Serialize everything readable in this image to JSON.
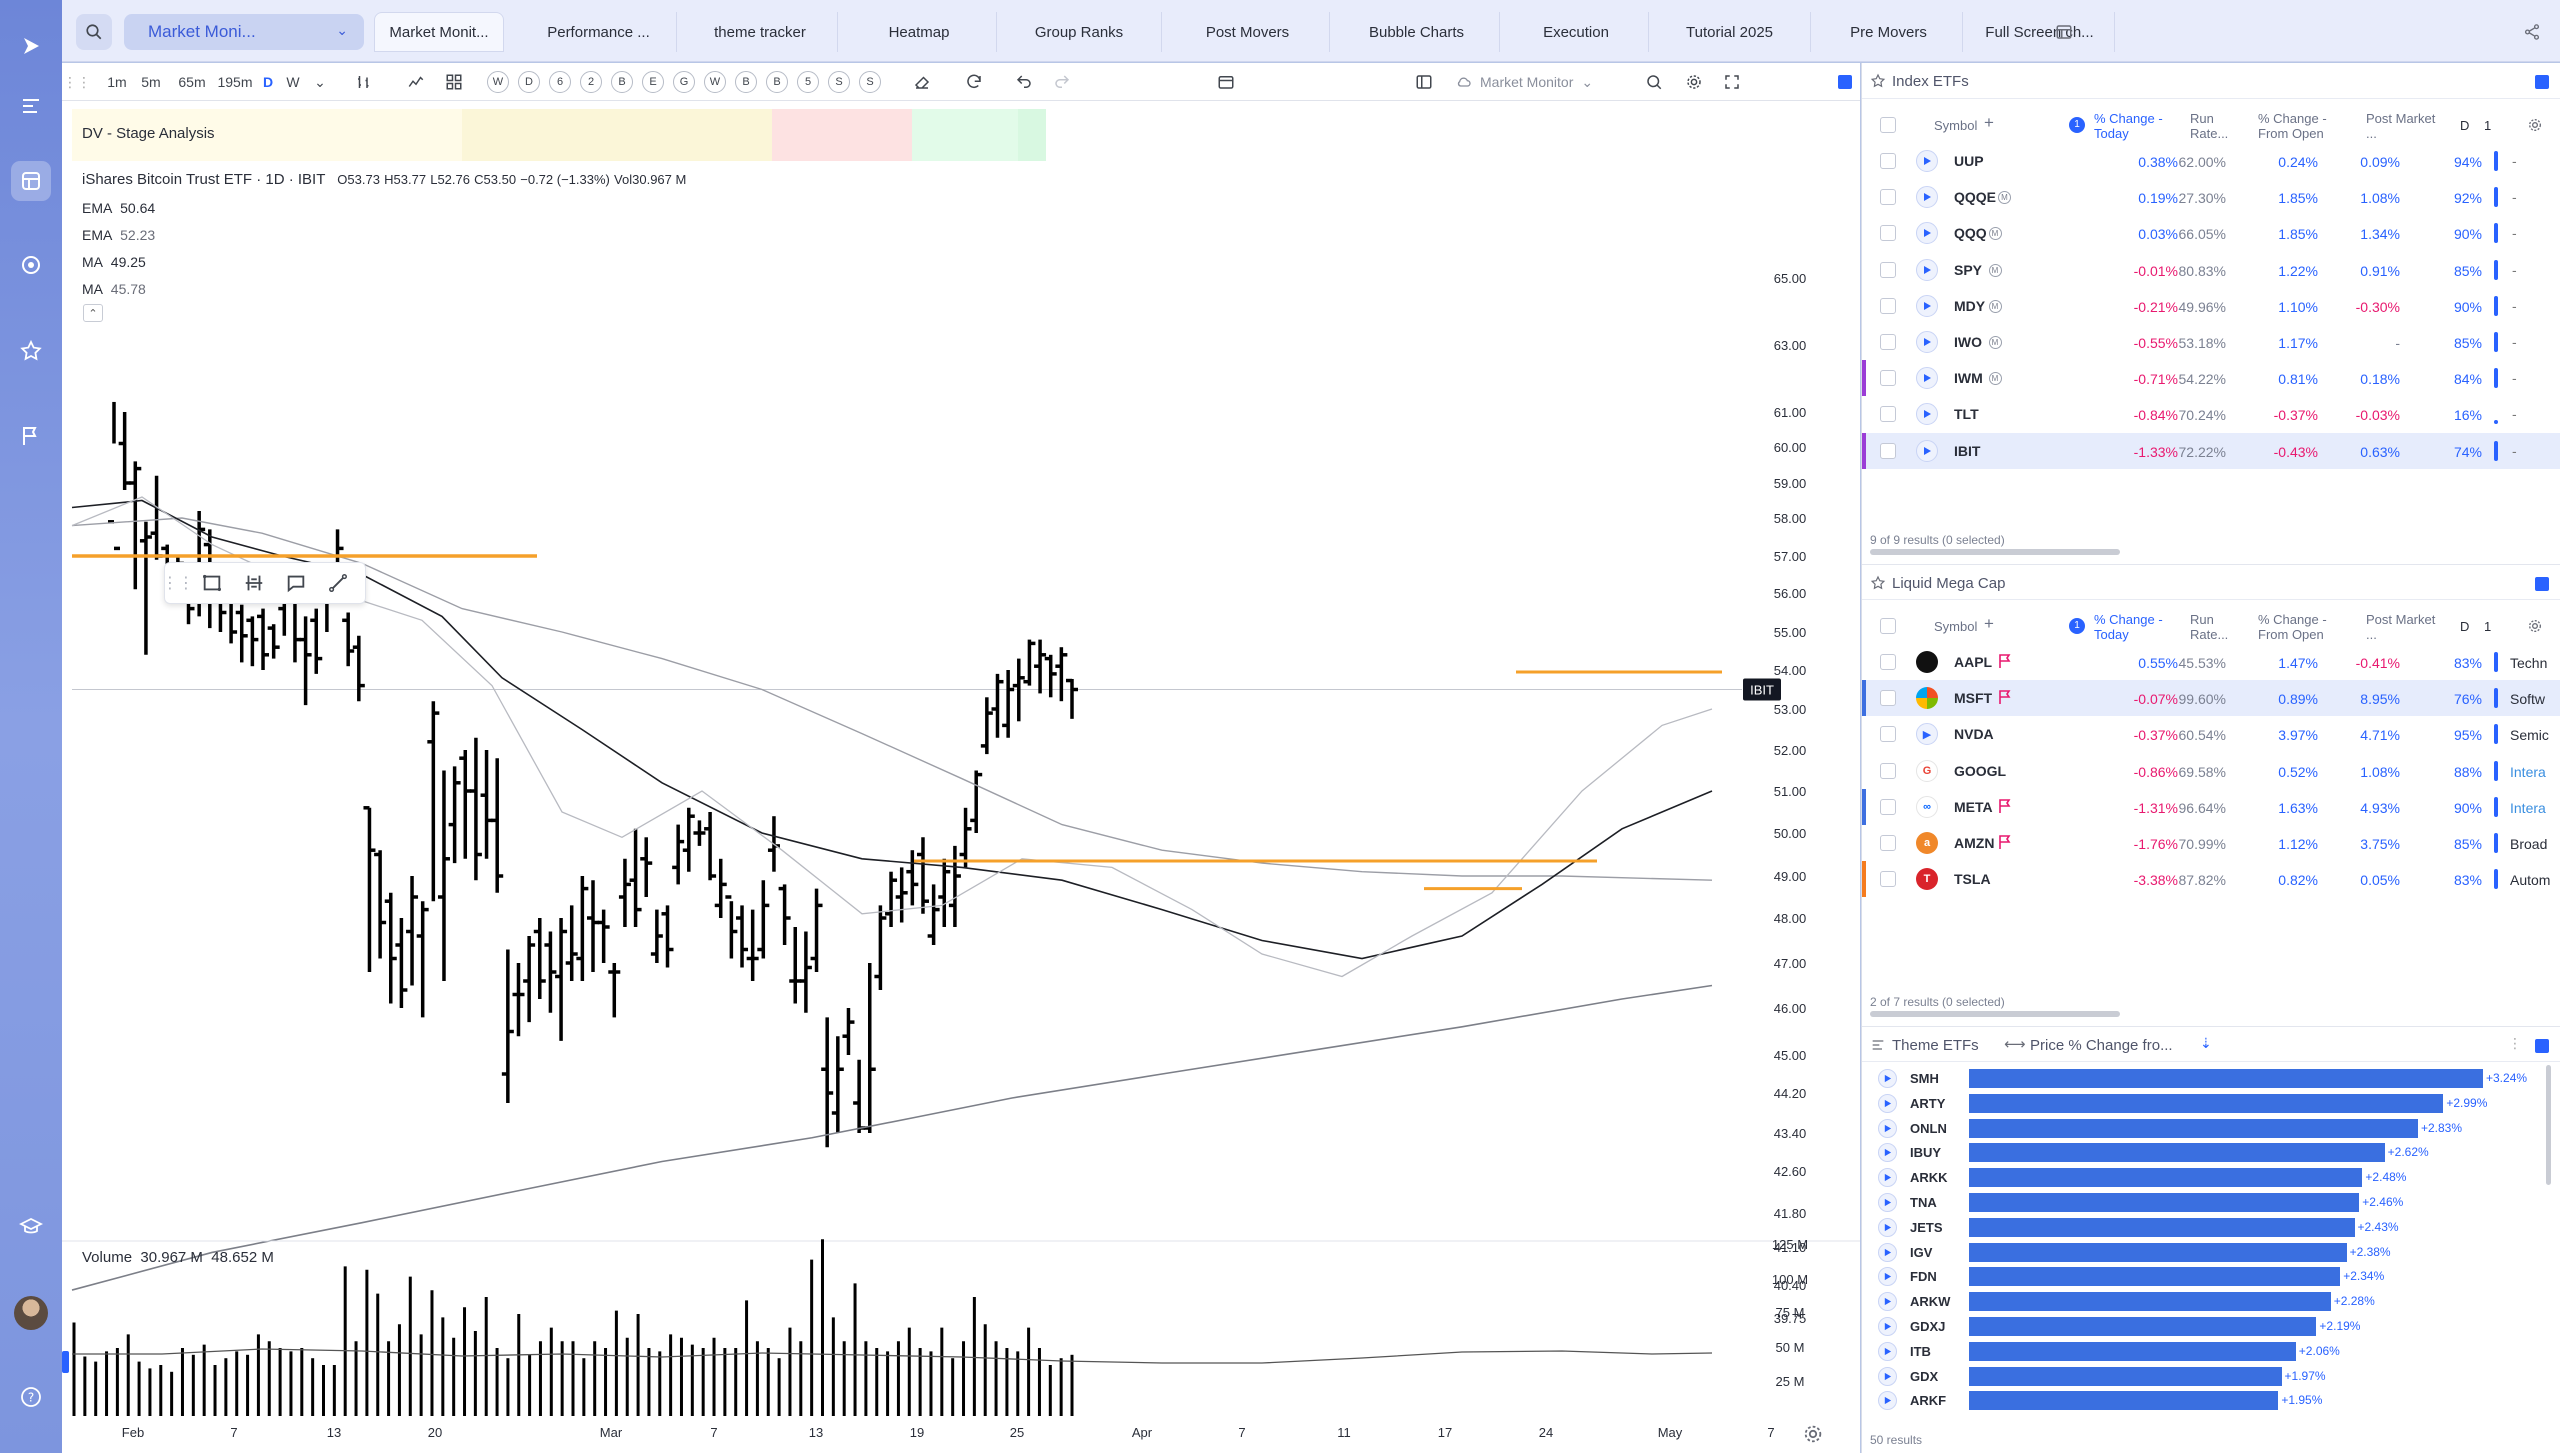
{
  "topbar": {
    "layout_name": "Market Moni...",
    "tabs": [
      {
        "label": "Market Monit...",
        "active": true
      },
      {
        "label": "Performance ...",
        "active": false
      },
      {
        "label": "theme tracker",
        "active": false
      },
      {
        "label": "Heatmap",
        "active": false
      },
      {
        "label": "Group Ranks",
        "active": false
      },
      {
        "label": "Post Movers",
        "active": false
      },
      {
        "label": "Bubble Charts",
        "active": false
      },
      {
        "label": "Execution",
        "active": false
      },
      {
        "label": "Tutorial 2025",
        "active": false
      },
      {
        "label": "Pre Movers",
        "active": false
      },
      {
        "label": "Full Screen ch...",
        "active": false
      }
    ]
  },
  "chart_toolbar": {
    "intervals": [
      "1m",
      "5m",
      "65m",
      "195m",
      "D",
      "W"
    ],
    "selected_interval": "D",
    "circle_buttons": [
      "W",
      "D",
      "6",
      "2",
      "B",
      "E",
      "G",
      "W",
      "B",
      "B",
      "5",
      "S",
      "S"
    ],
    "layout_select": "Market Monitor"
  },
  "chart": {
    "stage_label": "DV - Stage Analysis",
    "symbol_line": "iShares Bitcoin Trust ETF · 1D · IBIT",
    "ohlc": {
      "O": "O53.73",
      "H": "H53.77",
      "L": "L52.76",
      "C": "C53.50",
      "chg": "−0.72 (−1.33%)",
      "vol": "Vol30.967 M"
    },
    "indicators": [
      {
        "name": "EMA",
        "value": "50.64"
      },
      {
        "name": "EMA",
        "value": "52.23"
      },
      {
        "name": "MA",
        "value": "49.25"
      },
      {
        "name": "MA",
        "value": "45.78"
      }
    ],
    "price_tag": "IBIT",
    "volume_legend": {
      "name": "Volume",
      "v1": "30.967 M",
      "v2": "48.652 M"
    },
    "y_ticks": [
      "65.00",
      "63.00",
      "61.00",
      "60.00",
      "59.00",
      "58.00",
      "57.00",
      "56.00",
      "55.00",
      "54.00",
      "53.00",
      "52.00",
      "51.00",
      "50.00",
      "49.00",
      "48.00",
      "47.00",
      "46.00",
      "45.00",
      "44.20",
      "43.40",
      "42.60",
      "41.80",
      "41.10",
      "40.40",
      "39.75"
    ],
    "vol_ticks": [
      "125 M",
      "100 M",
      "75 M",
      "50 M",
      "25 M"
    ],
    "x_ticks": [
      "Feb",
      "7",
      "13",
      "20",
      "Mar",
      "7",
      "13",
      "19",
      "25",
      "Apr",
      "7",
      "11",
      "17",
      "24",
      "May",
      "7"
    ]
  },
  "chart_data": {
    "type": "ohlc",
    "title": "iShares Bitcoin Trust ETF · 1D · IBIT",
    "ylim": [
      39.75,
      65.0
    ],
    "last_close": 53.5,
    "x_range": [
      "Feb",
      "May"
    ],
    "series": [
      {
        "name": "EMA",
        "last": 50.64
      },
      {
        "name": "EMA",
        "last": 52.23
      },
      {
        "name": "MA",
        "last": 49.25
      },
      {
        "name": "MA",
        "last": 45.78
      },
      {
        "name": "Volume",
        "last": "30.967 M"
      }
    ]
  },
  "index_etfs": {
    "title": "Index ETFs",
    "columns": [
      "Symbol",
      "% Change - Today",
      "Run Rate...",
      "% Change - From Open",
      "Post Market ...",
      "D",
      "1"
    ],
    "rows": [
      {
        "sym": "UUP",
        "chg": "0.38%",
        "run": "62.00%",
        "open": "0.24%",
        "post": "0.09%",
        "d": "94%",
        "tag": "-"
      },
      {
        "sym": "QQQE",
        "chg": "0.19%",
        "run": "27.30%",
        "open": "1.85%",
        "post": "1.08%",
        "d": "92%",
        "tag": "-"
      },
      {
        "sym": "QQQ",
        "chg": "0.03%",
        "run": "66.05%",
        "open": "1.85%",
        "post": "1.34%",
        "d": "90%",
        "tag": "-"
      },
      {
        "sym": "SPY",
        "chg": "-0.01%",
        "run": "80.83%",
        "open": "1.22%",
        "post": "0.91%",
        "d": "85%",
        "tag": "-"
      },
      {
        "sym": "MDY",
        "chg": "-0.21%",
        "run": "49.96%",
        "open": "1.10%",
        "post": "-0.30%",
        "d": "90%",
        "tag": "-"
      },
      {
        "sym": "IWO",
        "chg": "-0.55%",
        "run": "53.18%",
        "open": "1.17%",
        "post": "-",
        "d": "85%",
        "tag": "-"
      },
      {
        "sym": "IWM",
        "chg": "-0.71%",
        "run": "54.22%",
        "open": "0.81%",
        "post": "0.18%",
        "d": "84%",
        "tag": "-"
      },
      {
        "sym": "TLT",
        "chg": "-0.84%",
        "run": "70.24%",
        "open": "-0.37%",
        "post": "-0.03%",
        "d": "16%",
        "tag": "-"
      },
      {
        "sym": "IBIT",
        "chg": "-1.33%",
        "run": "72.22%",
        "open": "-0.43%",
        "post": "0.63%",
        "d": "74%",
        "tag": "-"
      }
    ],
    "footer": "9 of 9 results (0 selected)"
  },
  "mega_cap": {
    "title": "Liquid Mega Cap",
    "columns": [
      "Symbol",
      "% Change - Today",
      "Run Rate...",
      "% Change - From Open",
      "Post Market ...",
      "D",
      "1"
    ],
    "rows": [
      {
        "sym": "AAPL",
        "chg": "0.55%",
        "run": "45.53%",
        "open": "1.47%",
        "post": "-0.41%",
        "d": "83%",
        "sector": "Techn"
      },
      {
        "sym": "MSFT",
        "chg": "-0.07%",
        "run": "99.60%",
        "open": "0.89%",
        "post": "8.95%",
        "d": "76%",
        "sector": "Softw"
      },
      {
        "sym": "NVDA",
        "chg": "-0.37%",
        "run": "60.54%",
        "open": "3.97%",
        "post": "4.71%",
        "d": "95%",
        "sector": "Semic"
      },
      {
        "sym": "GOOGL",
        "chg": "-0.86%",
        "run": "69.58%",
        "open": "0.52%",
        "post": "1.08%",
        "d": "88%",
        "sector": "Intera"
      },
      {
        "sym": "META",
        "chg": "-1.31%",
        "run": "96.64%",
        "open": "1.63%",
        "post": "4.93%",
        "d": "90%",
        "sector": "Intera"
      },
      {
        "sym": "AMZN",
        "chg": "-1.76%",
        "run": "70.99%",
        "open": "1.12%",
        "post": "3.75%",
        "d": "85%",
        "sector": "Broad"
      },
      {
        "sym": "TSLA",
        "chg": "-3.38%",
        "run": "87.82%",
        "open": "0.82%",
        "post": "0.05%",
        "d": "83%",
        "sector": "Autom"
      }
    ],
    "footer": "2 of 7 results (0 selected)"
  },
  "theme_etfs": {
    "title": "Theme ETFs",
    "sort_label": "Price % Change fro...",
    "rows": [
      {
        "sym": "SMH",
        "val": "+3.24%",
        "pct": 3.24
      },
      {
        "sym": "ARTY",
        "val": "+2.99%",
        "pct": 2.99
      },
      {
        "sym": "ONLN",
        "val": "+2.83%",
        "pct": 2.83
      },
      {
        "sym": "IBUY",
        "val": "+2.62%",
        "pct": 2.62
      },
      {
        "sym": "ARKK",
        "val": "+2.48%",
        "pct": 2.48
      },
      {
        "sym": "TNA",
        "val": "+2.46%",
        "pct": 2.46
      },
      {
        "sym": "JETS",
        "val": "+2.43%",
        "pct": 2.43
      },
      {
        "sym": "IGV",
        "val": "+2.38%",
        "pct": 2.38
      },
      {
        "sym": "FDN",
        "val": "+2.34%",
        "pct": 2.34
      },
      {
        "sym": "ARKW",
        "val": "+2.28%",
        "pct": 2.28
      },
      {
        "sym": "GDXJ",
        "val": "+2.19%",
        "pct": 2.19
      },
      {
        "sym": "ITB",
        "val": "+2.06%",
        "pct": 2.06
      },
      {
        "sym": "GDX",
        "val": "+1.97%",
        "pct": 1.97
      },
      {
        "sym": "ARKF",
        "val": "+1.95%",
        "pct": 1.95
      }
    ],
    "footer": "50 results"
  },
  "colors": {
    "accent": "#2962ff",
    "negative": "#e8196f",
    "orange": "#f5a02a"
  }
}
